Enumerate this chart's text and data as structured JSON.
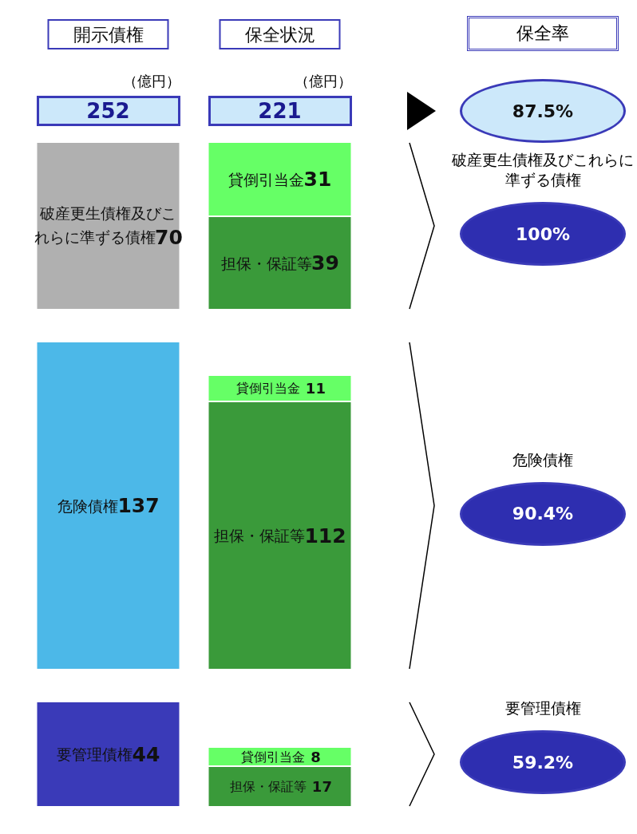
{
  "chart_data": [
    {
      "type": "bar",
      "categories": [
        "開示債権",
        "保全状況"
      ],
      "stacked": true,
      "data_labels": true,
      "legend": false,
      "grid": false,
      "tick_labels": "x",
      "series": [
        {
          "name": "破産更生債権及びこれらに準ずる債権",
          "color": "#b0b0b0",
          "values": [
            70,
            null
          ]
        },
        {
          "name": "担保・保証等",
          "color": "#3a9a3a",
          "values": [
            null,
            39
          ]
        },
        {
          "name": "貸倒引当金",
          "color": "#66ff66",
          "values": [
            null,
            31
          ]
        }
      ],
      "annotations": [
        "（億円）",
        "252",
        "221",
        "保全率",
        "87.5%",
        "破産更生債権及びこれらに準ずる債権",
        "100%"
      ]
    },
    {
      "type": "bar",
      "categories": [
        null,
        null
      ],
      "stacked": true,
      "data_labels": true,
      "legend": false,
      "grid": false,
      "tick_labels": false,
      "series": [
        {
          "name": "危険債権",
          "color": "#4cb8e8",
          "values": [
            137,
            null
          ]
        },
        {
          "name": "担保・保証等",
          "color": "#3a9a3a",
          "values": [
            null,
            112
          ]
        },
        {
          "name": "貸倒引当金",
          "color": "#66ff66",
          "values": [
            null,
            11
          ]
        }
      ],
      "annotations": [
        "危険債権",
        "90.4%"
      ]
    },
    {
      "type": "bar",
      "categories": [
        null,
        null
      ],
      "stacked": true,
      "data_labels": true,
      "legend": false,
      "grid": false,
      "tick_labels": false,
      "series": [
        {
          "name": "要管理債権",
          "color": "#3a3ab8",
          "values": [
            44,
            null
          ]
        },
        {
          "name": "担保・保証等",
          "color": "#3a9a3a",
          "values": [
            null,
            17
          ]
        },
        {
          "name": "貸倒引当金",
          "color": "#66ff66",
          "values": [
            null,
            8
          ]
        }
      ],
      "annotations": [
        "要管理債権",
        "59.2%"
      ]
    }
  ]
}
